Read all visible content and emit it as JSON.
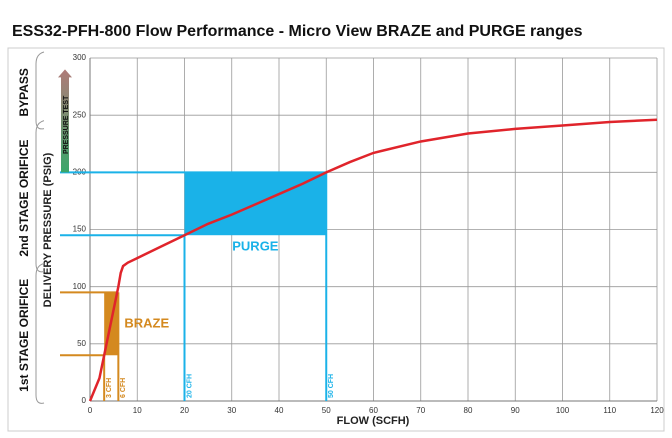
{
  "chart_data": {
    "type": "line",
    "title": "ESS32-PFH-800 Flow Performance - Micro View BRAZE and PURGE ranges",
    "x_label": "FLOW (SCFH)",
    "y_label": "DELIVERY PRESSURE (PSIG)",
    "xlim": [
      0,
      120
    ],
    "ylim": [
      0,
      300
    ],
    "xticks": [
      0,
      10,
      20,
      30,
      40,
      50,
      60,
      70,
      80,
      90,
      100,
      110,
      120
    ],
    "yticks": [
      0,
      50,
      100,
      150,
      200,
      250,
      300
    ],
    "grid": true,
    "x": [
      0,
      2,
      3,
      4,
      5,
      6,
      6.5,
      7,
      8,
      10,
      15,
      20,
      25,
      30,
      35,
      40,
      45,
      50,
      55,
      60,
      70,
      80,
      90,
      100,
      110,
      120
    ],
    "series": [
      {
        "color": "#e0242b",
        "values": [
          0,
          20,
          40,
          60,
          80,
          100,
          112,
          118,
          121,
          125,
          135,
          145,
          155,
          163,
          172,
          181,
          190,
          200,
          209,
          217,
          227,
          234,
          238,
          241,
          244,
          246
        ]
      }
    ],
    "ranges": [
      {
        "label": "BRAZE",
        "color": "#d4891f",
        "x": [
          3,
          6
        ],
        "y": [
          40,
          95
        ],
        "x_labels": [
          "3 CFH",
          "6 CFH"
        ]
      },
      {
        "label": "PURGE",
        "color": "#1ab2e8",
        "x": [
          20,
          50
        ],
        "y": [
          145,
          200
        ],
        "x_labels": [
          "20 CFH",
          "50 CFH"
        ]
      }
    ],
    "zones": [
      {
        "label": "BYPASS",
        "y": [
          240,
          300
        ]
      },
      {
        "label": "2nd STAGE ORIFICE",
        "y": [
          115,
          240
        ]
      },
      {
        "label": "1st STAGE ORIFICE",
        "y": [
          0,
          115
        ]
      }
    ],
    "pressure_test": {
      "label": "PRESSURE TEST",
      "y": [
        200,
        290
      ]
    }
  }
}
